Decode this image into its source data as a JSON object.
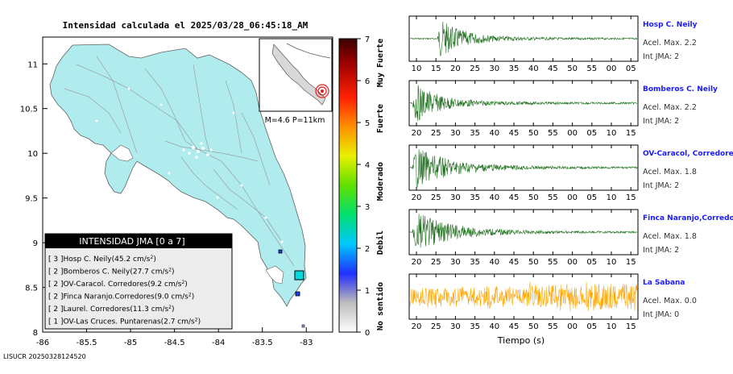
{
  "map": {
    "title": "Intensidad calculada el 2025/03/28_06:45:18_AM",
    "lat_ticks": [
      "11",
      "10.5",
      "10",
      "9.5",
      "9",
      "8.5",
      "8"
    ],
    "lon_ticks": [
      "-86",
      "-85.5",
      "-85",
      "-84.5",
      "-84",
      "-83.5",
      "-83"
    ],
    "inset_label": "M=4.6 P=11km",
    "footer": "LISUCR 20250328124520",
    "colors": {
      "land": "#b0eced",
      "sea": "#ffffff",
      "roads": "#9aa0a4"
    }
  },
  "legend": {
    "header": "INTENSIDAD JMA [0 a 7]",
    "items": [
      {
        "level": "[ 3 ]",
        "name": "Hosp C. Neily",
        "value": "(45.2 cm/s",
        "exp": "2",
        "close": ")"
      },
      {
        "level": "[ 2 ]",
        "name": "Bomberos C. Neily",
        "value": "(27.7 cm/s",
        "exp": "2",
        "close": ")"
      },
      {
        "level": "[ 2 ]",
        "name": "OV-Caracol. Corredores",
        "value": "(9.2 cm/s",
        "exp": "2",
        "close": ")"
      },
      {
        "level": "[ 2 ]",
        "name": "Finca Naranjo.Corredores",
        "value": "(9.0 cm/s",
        "exp": "2",
        "close": ")"
      },
      {
        "level": "[ 2 ]",
        "name": "Laurel. Corredores",
        "value": "(11.3 cm/s",
        "exp": "2",
        "close": ")"
      },
      {
        "level": "[ 1 ]",
        "name": "OV-Las Cruces. Puntarenas",
        "value": "(2.7 cm/s",
        "exp": "2",
        "close": ")"
      }
    ]
  },
  "colorbar": {
    "ticks": [
      "0",
      "1",
      "2",
      "3",
      "4",
      "5",
      "6",
      "7"
    ],
    "labels": [
      "No sentido",
      "Debil",
      "Moderado",
      "Fuerte",
      "Muy Fuerte"
    ]
  },
  "waveforms": {
    "xlabel": "Tiempo (s)",
    "traces": [
      {
        "name": "Hosp C. Neily",
        "acel": "Acel. Max. 2.2",
        "int": "Int JMA: 2",
        "color": "#1a6e1a",
        "ticks": [
          "10",
          "15",
          "20",
          "25",
          "30",
          "35",
          "40",
          "45",
          "50",
          "55",
          "00",
          "05"
        ]
      },
      {
        "name": "Bomberos C. Neily",
        "acel": "Acel. Max. 2.2",
        "int": "Int JMA: 2",
        "color": "#1a6e1a",
        "ticks": [
          "20",
          "25",
          "30",
          "35",
          "40",
          "45",
          "50",
          "55",
          "00",
          "05",
          "10",
          "15"
        ]
      },
      {
        "name": "OV-Caracol, Corredores",
        "acel": "Acel. Max. 1.8",
        "int": "Int JMA: 2",
        "color": "#1a6e1a",
        "ticks": [
          "20",
          "25",
          "30",
          "35",
          "40",
          "45",
          "50",
          "55",
          "00",
          "05",
          "10",
          "15"
        ]
      },
      {
        "name": "Finca Naranjo,Corredores",
        "acel": "Acel. Max. 1.8",
        "int": "Int JMA: 2",
        "color": "#1a6e1a",
        "ticks": [
          "20",
          "25",
          "30",
          "35",
          "40",
          "45",
          "50",
          "55",
          "00",
          "05",
          "10",
          "15"
        ]
      },
      {
        "name": "La Sabana",
        "acel": "Acel. Max. 0.0",
        "int": "Int JMA: 0",
        "color": "#ffa500",
        "ticks": [
          "20",
          "25",
          "30",
          "35",
          "40",
          "45",
          "50",
          "55",
          "00",
          "05",
          "10",
          "15"
        ]
      }
    ]
  },
  "chart_data": [
    {
      "type": "heatmap",
      "title": "Intensidad calculada el 2025/03/28_06:45:18_AM",
      "xlabel": "",
      "ylabel": "",
      "xlim": [
        -86,
        -82.7
      ],
      "ylim": [
        8,
        11.3
      ],
      "colorbar_range": [
        0,
        7
      ],
      "colorbar_labels": [
        "No sentido",
        "Debil",
        "Moderado",
        "Fuerte",
        "Muy Fuerte"
      ],
      "legend_placement": "bottom-left"
    },
    {
      "type": "line",
      "xlabel": "Tiempo (s)",
      "series": [
        {
          "name": "Hosp C. Neily",
          "acel_max": 2.2,
          "int_jma": 2
        },
        {
          "name": "Bomberos C. Neily",
          "acel_max": 2.2,
          "int_jma": 2
        },
        {
          "name": "OV-Caracol, Corredores",
          "acel_max": 1.8,
          "int_jma": 2
        },
        {
          "name": "Finca Naranjo,Corredores",
          "acel_max": 1.8,
          "int_jma": 2
        },
        {
          "name": "La Sabana",
          "acel_max": 0.0,
          "int_jma": 0
        }
      ]
    }
  ]
}
